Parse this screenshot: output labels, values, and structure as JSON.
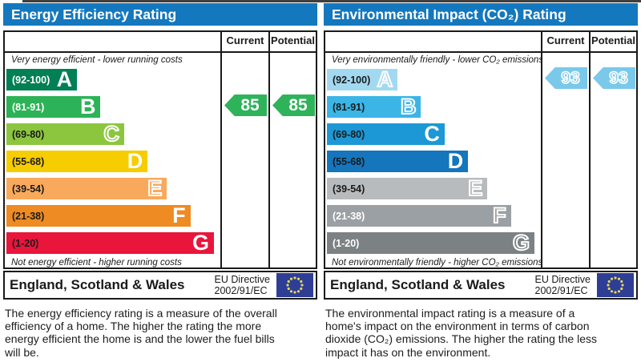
{
  "columns": {
    "current": "Current",
    "potential": "Potential"
  },
  "footer": {
    "region": "England, Scotland & Wales",
    "directive_line1": "EU Directive",
    "directive_line2": "2002/91/EC"
  },
  "theme": {
    "header_blue": "#1478be",
    "border_dark": "#1a1a1a",
    "flag_bg": "#2e3d96",
    "flag_stars": "#dcd75a"
  },
  "panels": {
    "left": {
      "title": "Energy Efficiency Rating",
      "top_caption": "Very energy efficient - lower running costs",
      "bottom_caption": "Not energy efficient - higher running costs",
      "bands": [
        {
          "letter": "A",
          "range": "(92-100)",
          "color": "#008054",
          "width_pct": 33,
          "range_color": "#ffffff",
          "letter_style": "solid"
        },
        {
          "letter": "B",
          "range": "(81-91)",
          "color": "#2cb357",
          "width_pct": 44,
          "range_color": "#ffffff",
          "letter_style": "solid"
        },
        {
          "letter": "C",
          "range": "(69-80)",
          "color": "#8cc63f",
          "width_pct": 55,
          "range_color": "#1a1a1a",
          "letter_style": "hollow"
        },
        {
          "letter": "D",
          "range": "(55-68)",
          "color": "#f5cd00",
          "width_pct": 66,
          "range_color": "#1a1a1a",
          "letter_style": "solid"
        },
        {
          "letter": "E",
          "range": "(39-54)",
          "color": "#f9a95c",
          "width_pct": 75,
          "range_color": "#1a1a1a",
          "letter_style": "hollow"
        },
        {
          "letter": "F",
          "range": "(21-38)",
          "color": "#ee8b22",
          "width_pct": 86,
          "range_color": "#1a1a1a",
          "letter_style": "solid"
        },
        {
          "letter": "G",
          "range": "(1-20)",
          "color": "#e9153b",
          "width_pct": 97,
          "range_color": "#1a1a1a",
          "letter_style": "solid"
        }
      ],
      "current": {
        "value": "85",
        "band_index": 1,
        "color": "#2eb35a",
        "style": "solid"
      },
      "potential": {
        "value": "85",
        "band_index": 1,
        "color": "#2eb35a",
        "style": "solid"
      },
      "description": "The energy efficiency rating is a measure of the overall efficiency of a home. The higher the rating the more energy efficient the home is and the lower the fuel bills will be."
    },
    "right": {
      "title": "Environmental Impact (CO₂) Rating",
      "top_caption": "Very environmentally friendly - lower CO₂ emissions",
      "bottom_caption": "Not environmentally friendly - higher CO₂ emissions",
      "bands": [
        {
          "letter": "A",
          "range": "(92-100)",
          "color": "#a2d9f1",
          "width_pct": 33,
          "range_color": "#1a1a1a",
          "letter_style": "hollow"
        },
        {
          "letter": "B",
          "range": "(81-91)",
          "color": "#3ab5e6",
          "width_pct": 44,
          "range_color": "#1a1a1a",
          "letter_style": "hollow"
        },
        {
          "letter": "C",
          "range": "(69-80)",
          "color": "#1c98d6",
          "width_pct": 55,
          "range_color": "#1a1a1a",
          "letter_style": "solid"
        },
        {
          "letter": "D",
          "range": "(55-68)",
          "color": "#1575bd",
          "width_pct": 66,
          "range_color": "#1a1a1a",
          "letter_style": "solid"
        },
        {
          "letter": "E",
          "range": "(39-54)",
          "color": "#b8bbbd",
          "width_pct": 75,
          "range_color": "#1a1a1a",
          "letter_style": "hollow"
        },
        {
          "letter": "F",
          "range": "(21-38)",
          "color": "#9ba0a4",
          "width_pct": 86,
          "range_color": "#ffffff",
          "letter_style": "hollow"
        },
        {
          "letter": "G",
          "range": "(1-20)",
          "color": "#7c8184",
          "width_pct": 97,
          "range_color": "#ffffff",
          "letter_style": "hollow"
        }
      ],
      "current": {
        "value": "93",
        "band_index": 0,
        "color": "#7ac9ea",
        "style": "hollow"
      },
      "potential": {
        "value": "93",
        "band_index": 0,
        "color": "#7ac9ea",
        "style": "hollow"
      },
      "description": "The environmental impact rating is a measure of a home's impact on the environment in terms of carbon dioxide (CO₂) emissions. The higher the rating the less impact it has on the environment."
    }
  },
  "chart_data": [
    {
      "type": "bar",
      "orientation": "horizontal",
      "title": "Energy Efficiency Rating",
      "categories": [
        "A",
        "B",
        "C",
        "D",
        "E",
        "F",
        "G"
      ],
      "band_score_ranges": [
        "92-100",
        "81-91",
        "69-80",
        "55-68",
        "39-54",
        "21-38",
        "1-20"
      ],
      "band_bar_widths_pct": [
        33,
        44,
        55,
        66,
        75,
        86,
        97
      ],
      "band_colors": [
        "#008054",
        "#2cb357",
        "#8cc63f",
        "#f5cd00",
        "#f9a95c",
        "#ee8b22",
        "#e9153b"
      ],
      "series": [
        {
          "name": "Current",
          "value": 85,
          "band": "B"
        },
        {
          "name": "Potential",
          "value": 85,
          "band": "B"
        }
      ],
      "top_label": "Very energy efficient - lower running costs",
      "bottom_label": "Not energy efficient - higher running costs",
      "footer": "England, Scotland & Wales — EU Directive 2002/91/EC"
    },
    {
      "type": "bar",
      "orientation": "horizontal",
      "title": "Environmental Impact (CO₂) Rating",
      "categories": [
        "A",
        "B",
        "C",
        "D",
        "E",
        "F",
        "G"
      ],
      "band_score_ranges": [
        "92-100",
        "81-91",
        "69-80",
        "55-68",
        "39-54",
        "21-38",
        "1-20"
      ],
      "band_bar_widths_pct": [
        33,
        44,
        55,
        66,
        75,
        86,
        97
      ],
      "band_colors": [
        "#a2d9f1",
        "#3ab5e6",
        "#1c98d6",
        "#1575bd",
        "#b8bbbd",
        "#9ba0a4",
        "#7c8184"
      ],
      "series": [
        {
          "name": "Current",
          "value": 93,
          "band": "A"
        },
        {
          "name": "Potential",
          "value": 93,
          "band": "A"
        }
      ],
      "top_label": "Very environmentally friendly - lower CO₂ emissions",
      "bottom_label": "Not environmentally friendly - higher CO₂ emissions",
      "footer": "England, Scotland & Wales — EU Directive 2002/91/EC"
    }
  ]
}
